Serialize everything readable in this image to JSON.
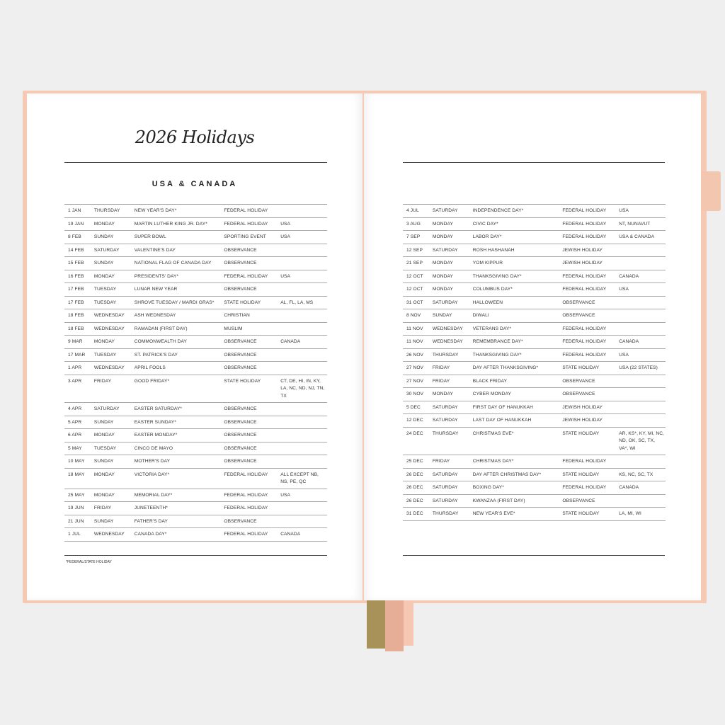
{
  "title": "2026 Holidays",
  "subtitle": "USA & CANADA",
  "footnote": "*FEDERAL/STATE HOLIDAY",
  "colors": {
    "cover": "#f5c9b3",
    "ribbon_olive": "#a8925a",
    "ribbon_pink": "#e6ad97"
  },
  "left_rows": [
    [
      "1 JAN",
      "THURSDAY",
      "NEW YEAR'S DAY*",
      "FEDERAL HOLIDAY",
      ""
    ],
    [
      "19 JAN",
      "MONDAY",
      "MARTIN LUTHER KING JR. DAY*",
      "FEDERAL HOLIDAY",
      "USA"
    ],
    [
      "8 FEB",
      "SUNDAY",
      "SUPER BOWL",
      "SPORTING EVENT",
      "USA"
    ],
    [
      "14 FEB",
      "SATURDAY",
      "VALENTINE'S DAY",
      "OBSERVANCE",
      ""
    ],
    [
      "15 FEB",
      "SUNDAY",
      "NATIONAL FLAG OF CANADA DAY",
      "OBSERVANCE",
      ""
    ],
    [
      "16 FEB",
      "MONDAY",
      "PRESIDENTS' DAY*",
      "FEDERAL HOLIDAY",
      "USA"
    ],
    [
      "17 FEB",
      "TUESDAY",
      "LUNAR NEW YEAR",
      "OBSERVANCE",
      ""
    ],
    [
      "17 FEB",
      "TUESDAY",
      "SHROVE TUESDAY / MARDI GRAS*",
      "STATE HOLIDAY",
      "AL, FL, LA, MS"
    ],
    [
      "18 FEB",
      "WEDNESDAY",
      "ASH WEDNESDAY",
      "CHRISTIAN",
      ""
    ],
    [
      "18 FEB",
      "WEDNESDAY",
      "RAMADAN (FIRST DAY)",
      "MUSLIM",
      ""
    ],
    [
      "9 MAR",
      "MONDAY",
      "COMMONWEALTH DAY",
      "OBSERVANCE",
      "CANADA"
    ],
    [
      "17 MAR",
      "TUESDAY",
      "ST. PATRICK'S DAY",
      "OBSERVANCE",
      ""
    ],
    [
      "1 APR",
      "WEDNESDAY",
      "APRIL FOOLS",
      "OBSERVANCE",
      ""
    ],
    [
      "3 APR",
      "FRIDAY",
      "GOOD FRIDAY*",
      "STATE HOLIDAY",
      "CT, DE, HI, IN, KY, LA, NC, ND, NJ, TN, TX"
    ],
    [
      "4 APR",
      "SATURDAY",
      "EASTER SATURDAY*",
      "OBSERVANCE",
      ""
    ],
    [
      "5 APR",
      "SUNDAY",
      "EASTER SUNDAY*",
      "OBSERVANCE",
      ""
    ],
    [
      "6 APR",
      "MONDAY",
      "EASTER MONDAY*",
      "OBSERVANCE",
      ""
    ],
    [
      "5 MAY",
      "TUESDAY",
      "CINCO DE MAYO",
      "OBSERVANCE",
      ""
    ],
    [
      "10 MAY",
      "SUNDAY",
      "MOTHER'S DAY",
      "OBSERVANCE",
      ""
    ],
    [
      "18 MAY",
      "MONDAY",
      "VICTORIA DAY*",
      "FEDERAL HOLIDAY",
      "ALL EXCEPT NB, NS, PE, QC"
    ],
    [
      "25 MAY",
      "MONDAY",
      "MEMORIAL DAY*",
      "FEDERAL HOLIDAY",
      "USA"
    ],
    [
      "19 JUN",
      "FRIDAY",
      "JUNETEENTH*",
      "FEDERAL HOLIDAY",
      ""
    ],
    [
      "21 JUN",
      "SUNDAY",
      "FATHER'S DAY",
      "OBSERVANCE",
      ""
    ],
    [
      "1 JUL",
      "WEDNESDAY",
      "CANADA DAY*",
      "FEDERAL HOLIDAY",
      "CANADA"
    ]
  ],
  "right_rows": [
    [
      "4 JUL",
      "SATURDAY",
      "INDEPENDENCE DAY*",
      "FEDERAL HOLIDAY",
      "USA"
    ],
    [
      "3 AUG",
      "MONDAY",
      "CIVIC DAY*",
      "FEDERAL HOLIDAY",
      "NT, NUNAVUT"
    ],
    [
      "7 SEP",
      "MONDAY",
      "LABOR DAY*",
      "FEDERAL HOLIDAY",
      "USA & CANADA"
    ],
    [
      "12 SEP",
      "SATURDAY",
      "ROSH HASHANAH",
      "JEWISH HOLIDAY",
      ""
    ],
    [
      "21 SEP",
      "MONDAY",
      "YOM KIPPUR",
      "JEWISH HOLIDAY",
      ""
    ],
    [
      "12 OCT",
      "MONDAY",
      "THANKSGIVING DAY*",
      "FEDERAL HOLIDAY",
      "CANADA"
    ],
    [
      "12 OCT",
      "MONDAY",
      "COLUMBUS DAY*",
      "FEDERAL HOLIDAY",
      "USA"
    ],
    [
      "31 OCT",
      "SATURDAY",
      "HALLOWEEN",
      "OBSERVANCE",
      ""
    ],
    [
      "8 NOV",
      "SUNDAY",
      "DIWALI",
      "OBSERVANCE",
      ""
    ],
    [
      "11 NOV",
      "WEDNESDAY",
      "VETERANS DAY*",
      "FEDERAL HOLIDAY",
      ""
    ],
    [
      "11 NOV",
      "WEDNESDAY",
      "REMEMBRANCE DAY*",
      "FEDERAL HOLIDAY",
      "CANADA"
    ],
    [
      "26 NOV",
      "THURSDAY",
      "THANKSGIVING DAY*",
      "FEDERAL HOLIDAY",
      "USA"
    ],
    [
      "27 NOV",
      "FRIDAY",
      "DAY AFTER THANKSGIVING*",
      "STATE HOLIDAY",
      "USA (22 STATES)"
    ],
    [
      "27 NOV",
      "FRIDAY",
      "BLACK FRIDAY",
      "OBSERVANCE",
      ""
    ],
    [
      "30 NOV",
      "MONDAY",
      "CYBER MONDAY",
      "OBSERVANCE",
      ""
    ],
    [
      "5 DEC",
      "SATURDAY",
      "FIRST DAY OF HANUKKAH",
      "JEWISH HOLIDAY",
      ""
    ],
    [
      "12 DEC",
      "SATURDAY",
      "LAST DAY OF HANUKKAH",
      "JEWISH HOLIDAY",
      ""
    ],
    [
      "24 DEC",
      "THURSDAY",
      "CHRISTMAS EVE*",
      "STATE HOLIDAY",
      "AR, KS*, KY, MI, NC, ND, OK, SC, TX, VA*, WI"
    ],
    [
      "25 DEC",
      "FRIDAY",
      "CHRISTMAS DAY*",
      "FEDERAL HOLIDAY",
      ""
    ],
    [
      "26 DEC",
      "SATURDAY",
      "DAY AFTER CHRISTMAS DAY*",
      "STATE HOLIDAY",
      "KS, NC, SC, TX"
    ],
    [
      "26 DEC",
      "SATURDAY",
      "BOXING DAY*",
      "FEDERAL HOLIDAY",
      "CANADA"
    ],
    [
      "26 DEC",
      "SATURDAY",
      "KWANZAA (FIRST DAY)",
      "OBSERVANCE",
      ""
    ],
    [
      "31 DEC",
      "THURSDAY",
      "NEW YEAR'S EVE*",
      "STATE HOLIDAY",
      "LA, MI, WI"
    ]
  ]
}
